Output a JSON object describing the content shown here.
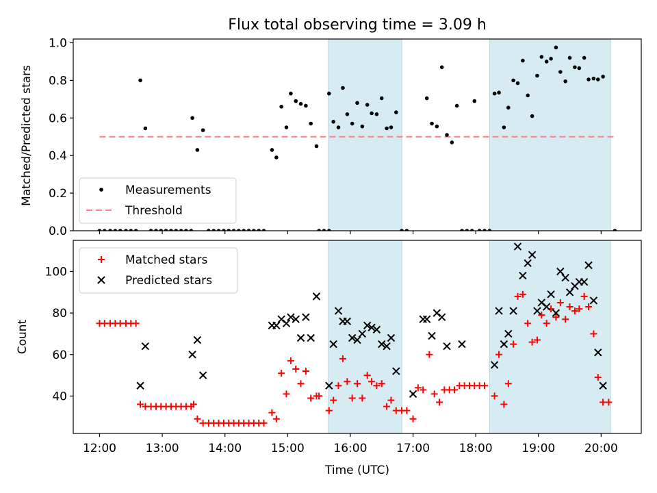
{
  "chart_data": [
    {
      "type": "scatter",
      "title": "Flux total observing time = 3.09 h",
      "xlabel": "",
      "ylabel": "Matched/Predicted stars",
      "ylim": [
        0,
        1.02
      ],
      "yticks": [
        "0.0",
        "0.2",
        "0.4",
        "0.6",
        "0.8",
        "1.0"
      ],
      "xlim": [
        11.58,
        20.64
      ],
      "legend_position": "lower-left",
      "shaded_spans": [
        [
          15.65,
          16.82
        ],
        [
          18.22,
          20.15
        ]
      ],
      "threshold": {
        "name": "Threshold",
        "y": 0.5,
        "x_range": [
          12.0,
          20.25
        ],
        "color": "#ff7f7f",
        "style": "dashed"
      },
      "series": [
        {
          "name": "Measurements",
          "color": "#000000",
          "marker": "dot",
          "points": [
            [
              12.0,
              0
            ],
            [
              12.08,
              0
            ],
            [
              12.17,
              0
            ],
            [
              12.25,
              0
            ],
            [
              12.33,
              0
            ],
            [
              12.42,
              0
            ],
            [
              12.5,
              0
            ],
            [
              12.58,
              0
            ],
            [
              12.65,
              0.8
            ],
            [
              12.73,
              0.545
            ],
            [
              12.82,
              0
            ],
            [
              12.9,
              0
            ],
            [
              12.98,
              0
            ],
            [
              13.06,
              0
            ],
            [
              13.14,
              0
            ],
            [
              13.22,
              0
            ],
            [
              13.3,
              0
            ],
            [
              13.38,
              0
            ],
            [
              13.46,
              0
            ],
            [
              13.48,
              0.6
            ],
            [
              13.56,
              0.43
            ],
            [
              13.65,
              0.535
            ],
            [
              13.74,
              0
            ],
            [
              13.82,
              0
            ],
            [
              13.9,
              0
            ],
            [
              13.98,
              0
            ],
            [
              14.06,
              0
            ],
            [
              14.14,
              0
            ],
            [
              14.22,
              0
            ],
            [
              14.3,
              0
            ],
            [
              14.38,
              0
            ],
            [
              14.46,
              0
            ],
            [
              14.54,
              0
            ],
            [
              14.62,
              0
            ],
            [
              14.75,
              0.43
            ],
            [
              14.82,
              0.39
            ],
            [
              14.9,
              0.66
            ],
            [
              14.98,
              0.55
            ],
            [
              15.05,
              0.73
            ],
            [
              15.13,
              0.69
            ],
            [
              15.21,
              0.675
            ],
            [
              15.29,
              0.665
            ],
            [
              15.37,
              0.57
            ],
            [
              15.46,
              0.45
            ],
            [
              15.5,
              0
            ],
            [
              15.58,
              0
            ],
            [
              15.66,
              0
            ],
            [
              15.66,
              0.73
            ],
            [
              15.73,
              0.58
            ],
            [
              15.81,
              0.55
            ],
            [
              15.88,
              0.76
            ],
            [
              15.95,
              0.62
            ],
            [
              16.03,
              0.57
            ],
            [
              16.11,
              0.68
            ],
            [
              16.19,
              0.555
            ],
            [
              16.27,
              0.67
            ],
            [
              16.34,
              0.625
            ],
            [
              16.42,
              0.62
            ],
            [
              16.5,
              0.705
            ],
            [
              16.58,
              0.545
            ],
            [
              16.65,
              0.55
            ],
            [
              16.73,
              0.63
            ],
            [
              16.82,
              0
            ],
            [
              16.9,
              0
            ],
            [
              17.22,
              0.705
            ],
            [
              17.3,
              0.57
            ],
            [
              17.38,
              0.555
            ],
            [
              17.46,
              0.87
            ],
            [
              17.54,
              0.51
            ],
            [
              17.62,
              0.47
            ],
            [
              17.7,
              0.665
            ],
            [
              17.78,
              0
            ],
            [
              17.86,
              0
            ],
            [
              17.94,
              0
            ],
            [
              17.98,
              0.69
            ],
            [
              18.06,
              0
            ],
            [
              18.14,
              0
            ],
            [
              18.22,
              0
            ],
            [
              18.3,
              0.73
            ],
            [
              18.37,
              0.735
            ],
            [
              18.45,
              0.55
            ],
            [
              18.52,
              0.655
            ],
            [
              18.6,
              0.8
            ],
            [
              18.67,
              0.785
            ],
            [
              18.75,
              0.905
            ],
            [
              18.83,
              0.72
            ],
            [
              18.9,
              0.61
            ],
            [
              18.98,
              0.825
            ],
            [
              19.05,
              0.925
            ],
            [
              19.13,
              0.9
            ],
            [
              19.2,
              0.915
            ],
            [
              19.28,
              0.975
            ],
            [
              19.35,
              0.845
            ],
            [
              19.43,
              0.795
            ],
            [
              19.5,
              0.92
            ],
            [
              19.58,
              0.87
            ],
            [
              19.65,
              0.865
            ],
            [
              19.73,
              0.92
            ],
            [
              19.8,
              0.805
            ],
            [
              19.88,
              0.81
            ],
            [
              19.95,
              0.805
            ],
            [
              20.03,
              0.82
            ],
            [
              20.22,
              0
            ]
          ]
        }
      ]
    },
    {
      "type": "scatter",
      "title": "",
      "xlabel": "Time (UTC)",
      "ylabel": "Count",
      "ylim": [
        22,
        115
      ],
      "yticks": [
        "40",
        "60",
        "80",
        "100"
      ],
      "xlim": [
        11.58,
        20.64
      ],
      "xticks": [
        "12:00",
        "13:00",
        "14:00",
        "15:00",
        "16:00",
        "17:00",
        "18:00",
        "19:00",
        "20:00"
      ],
      "legend_position": "top-left",
      "shaded_spans": [
        [
          15.65,
          16.82
        ],
        [
          18.22,
          20.15
        ]
      ],
      "series": [
        {
          "name": "Matched stars",
          "color": "#ff0000",
          "marker": "plus",
          "points": [
            [
              12.0,
              75
            ],
            [
              12.08,
              75
            ],
            [
              12.17,
              75
            ],
            [
              12.25,
              75
            ],
            [
              12.33,
              75
            ],
            [
              12.42,
              75
            ],
            [
              12.5,
              75
            ],
            [
              12.58,
              75
            ],
            [
              12.65,
              36
            ],
            [
              12.73,
              35
            ],
            [
              12.82,
              35
            ],
            [
              12.9,
              35
            ],
            [
              12.98,
              35
            ],
            [
              13.06,
              35
            ],
            [
              13.14,
              35
            ],
            [
              13.22,
              35
            ],
            [
              13.3,
              35
            ],
            [
              13.38,
              35
            ],
            [
              13.46,
              35
            ],
            [
              13.5,
              36
            ],
            [
              13.56,
              29
            ],
            [
              13.65,
              27
            ],
            [
              13.74,
              27
            ],
            [
              13.82,
              27
            ],
            [
              13.9,
              27
            ],
            [
              13.98,
              27
            ],
            [
              14.06,
              27
            ],
            [
              14.14,
              27
            ],
            [
              14.22,
              27
            ],
            [
              14.3,
              27
            ],
            [
              14.38,
              27
            ],
            [
              14.46,
              27
            ],
            [
              14.54,
              27
            ],
            [
              14.62,
              27
            ],
            [
              14.75,
              32
            ],
            [
              14.82,
              29
            ],
            [
              14.9,
              51
            ],
            [
              14.98,
              41
            ],
            [
              15.05,
              57
            ],
            [
              15.13,
              53
            ],
            [
              15.21,
              46
            ],
            [
              15.29,
              52
            ],
            [
              15.37,
              39
            ],
            [
              15.46,
              40
            ],
            [
              15.5,
              40
            ],
            [
              15.66,
              33
            ],
            [
              15.73,
              38
            ],
            [
              15.81,
              45
            ],
            [
              15.88,
              58
            ],
            [
              15.95,
              47
            ],
            [
              16.03,
              39
            ],
            [
              16.11,
              46
            ],
            [
              16.19,
              39
            ],
            [
              16.27,
              50
            ],
            [
              16.34,
              47
            ],
            [
              16.42,
              45
            ],
            [
              16.5,
              46
            ],
            [
              16.58,
              35
            ],
            [
              16.65,
              38
            ],
            [
              16.73,
              33
            ],
            [
              16.82,
              33
            ],
            [
              16.9,
              33
            ],
            [
              17.0,
              29
            ],
            [
              17.08,
              44
            ],
            [
              17.16,
              43
            ],
            [
              17.26,
              60
            ],
            [
              17.34,
              41
            ],
            [
              17.42,
              37
            ],
            [
              17.5,
              43
            ],
            [
              17.58,
              43
            ],
            [
              17.66,
              43
            ],
            [
              17.74,
              45
            ],
            [
              17.82,
              45
            ],
            [
              17.9,
              45
            ],
            [
              17.98,
              45
            ],
            [
              18.06,
              45
            ],
            [
              18.14,
              45
            ],
            [
              18.3,
              40
            ],
            [
              18.37,
              60
            ],
            [
              18.45,
              36
            ],
            [
              18.52,
              46
            ],
            [
              18.6,
              65
            ],
            [
              18.67,
              88
            ],
            [
              18.75,
              89
            ],
            [
              18.83,
              75
            ],
            [
              18.9,
              66
            ],
            [
              18.98,
              67
            ],
            [
              19.05,
              79
            ],
            [
              19.13,
              75
            ],
            [
              19.2,
              82
            ],
            [
              19.28,
              78
            ],
            [
              19.35,
              85
            ],
            [
              19.43,
              77
            ],
            [
              19.5,
              83
            ],
            [
              19.58,
              81
            ],
            [
              19.65,
              82
            ],
            [
              19.73,
              88
            ],
            [
              19.8,
              83
            ],
            [
              19.88,
              70
            ],
            [
              19.95,
              49
            ],
            [
              20.03,
              37
            ],
            [
              20.12,
              37
            ]
          ]
        },
        {
          "name": "Predicted stars",
          "color": "#000000",
          "marker": "x",
          "points": [
            [
              12.65,
              45
            ],
            [
              12.73,
              64
            ],
            [
              13.48,
              60
            ],
            [
              13.56,
              67
            ],
            [
              13.65,
              50
            ],
            [
              14.75,
              74
            ],
            [
              14.82,
              74
            ],
            [
              14.9,
              77
            ],
            [
              14.98,
              75
            ],
            [
              15.05,
              78
            ],
            [
              15.13,
              77
            ],
            [
              15.21,
              68
            ],
            [
              15.29,
              78
            ],
            [
              15.37,
              68
            ],
            [
              15.46,
              88
            ],
            [
              15.66,
              45
            ],
            [
              15.73,
              65
            ],
            [
              15.81,
              81
            ],
            [
              15.88,
              76
            ],
            [
              15.95,
              76
            ],
            [
              16.03,
              68
            ],
            [
              16.11,
              67
            ],
            [
              16.19,
              70
            ],
            [
              16.27,
              74
            ],
            [
              16.34,
              73
            ],
            [
              16.42,
              72
            ],
            [
              16.5,
              65
            ],
            [
              16.58,
              64
            ],
            [
              16.65,
              68
            ],
            [
              16.73,
              52
            ],
            [
              17.0,
              41
            ],
            [
              17.16,
              77
            ],
            [
              17.22,
              77
            ],
            [
              17.3,
              69
            ],
            [
              17.38,
              80
            ],
            [
              17.46,
              78
            ],
            [
              17.54,
              64
            ],
            [
              17.78,
              65
            ],
            [
              18.3,
              55
            ],
            [
              18.37,
              81
            ],
            [
              18.45,
              65
            ],
            [
              18.52,
              70
            ],
            [
              18.6,
              81
            ],
            [
              18.67,
              112
            ],
            [
              18.75,
              98
            ],
            [
              18.83,
              104
            ],
            [
              18.9,
              108
            ],
            [
              18.98,
              81
            ],
            [
              19.05,
              85
            ],
            [
              19.13,
              83
            ],
            [
              19.2,
              89
            ],
            [
              19.28,
              80
            ],
            [
              19.35,
              100
            ],
            [
              19.43,
              97
            ],
            [
              19.5,
              90
            ],
            [
              19.58,
              93
            ],
            [
              19.65,
              95
            ],
            [
              19.73,
              95
            ],
            [
              19.8,
              103
            ],
            [
              19.88,
              86
            ],
            [
              19.95,
              61
            ],
            [
              20.03,
              45
            ]
          ]
        }
      ]
    }
  ]
}
